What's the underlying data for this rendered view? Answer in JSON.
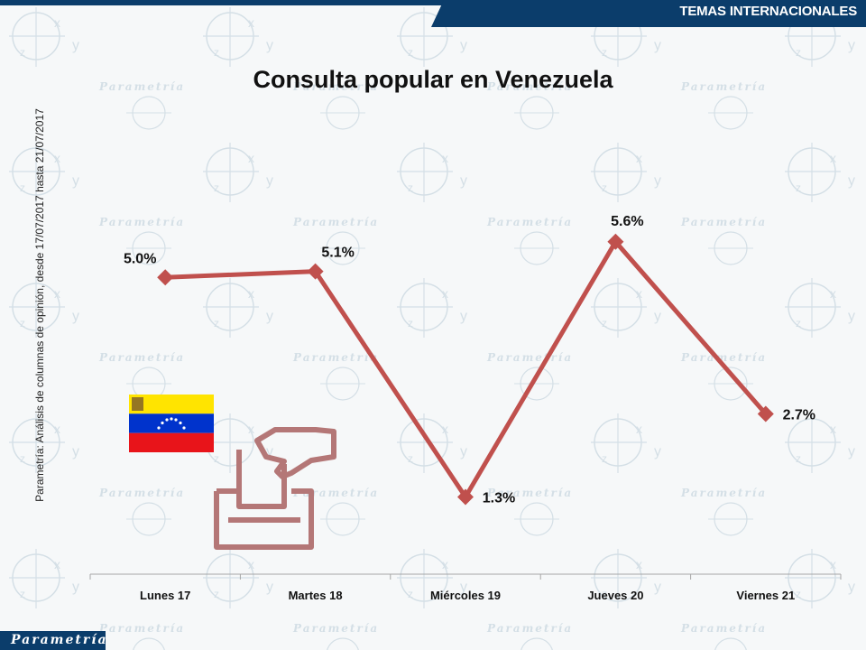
{
  "header": {
    "section_label": "TEMAS INTERNACIONALES",
    "brand": "Parametría",
    "brand_color": "#0b3d6b"
  },
  "background": {
    "watermark_text": "Parametría",
    "watermark_color": "#c5d3dc"
  },
  "source_note": "Parametría: Análisis de columnas de opinión, desde 17/07/2017 hasta 21/07/2017",
  "icons": {
    "flag": "venezuela-flag-icon",
    "ballot": "ballot-box-icon",
    "flag_colors": {
      "yellow": "#ffe400",
      "blue": "#0033cc",
      "red": "#e8141a",
      "stars": "#ffffff"
    },
    "ballot_color": "#b47777"
  },
  "chart_data": {
    "type": "line",
    "title": "Consulta popular en Venezuela",
    "xlabel": "",
    "ylabel": "",
    "categories": [
      "Lunes 17",
      "Martes 18",
      "Miércoles 19",
      "Jueves 20",
      "Viernes 21"
    ],
    "series": [
      {
        "values": [
          5.0,
          5.1,
          1.3,
          5.6,
          2.7
        ],
        "labels": [
          "5.0%",
          "5.1%",
          "1.3%",
          "5.6%",
          "2.7%"
        ],
        "color": "#c0504d"
      }
    ],
    "ylim": [
      0,
      8
    ],
    "grid": false,
    "legend": "none",
    "axis_color": "#a6a6a6"
  }
}
